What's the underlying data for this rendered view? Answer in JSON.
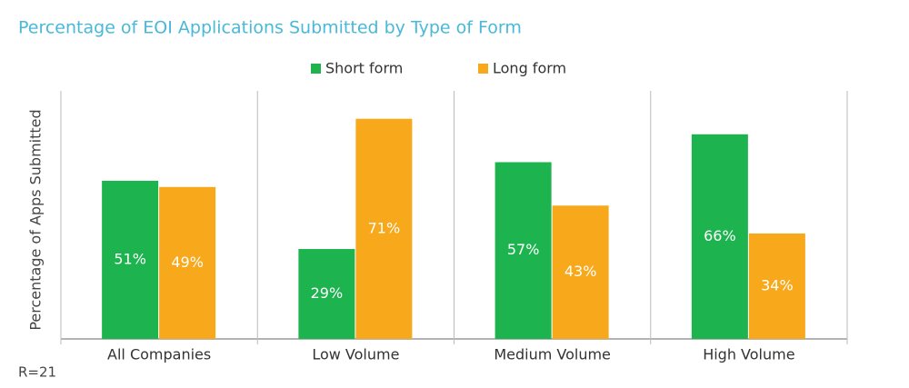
{
  "chart_data": {
    "type": "bar",
    "title": "Percentage of EOI Applications Submitted by Type of Form",
    "ylabel": "Percentage of Apps Submitted",
    "annotation": "R=21",
    "categories": [
      "All Companies",
      "Low Volume",
      "Medium Volume",
      "High Volume"
    ],
    "series": [
      {
        "name": "Short form",
        "color": "#1db34f",
        "values": [
          51,
          29,
          57,
          66
        ],
        "value_labels": [
          "51%",
          "29%",
          "57%",
          "66%"
        ]
      },
      {
        "name": "Long form",
        "color": "#f7a81b",
        "values": [
          49,
          71,
          43,
          34
        ],
        "value_labels": [
          "49%",
          "71%",
          "43%",
          "34%"
        ]
      }
    ],
    "ylim": [
      0,
      80
    ]
  }
}
